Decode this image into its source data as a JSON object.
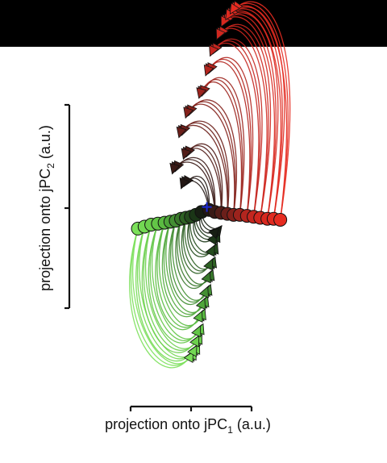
{
  "chart_data": {
    "type": "line",
    "xlabel": "projection onto jPC",
    "xlabel_sub": "1",
    "xlabel_unit": " (a.u.)",
    "ylabel": "projection onto jPC",
    "ylabel_sub": "2",
    "ylabel_unit": " (a.u.)",
    "xlim": [
      -1.75,
      2.2
    ],
    "ylim": [
      -2.0,
      1.55
    ],
    "grid": false,
    "legend": "none",
    "origin_marker": {
      "x": 0,
      "y": 0,
      "color": "#1d2bd6",
      "symbol": "+"
    },
    "color_scale": {
      "green": "#7be05a",
      "dark": "#151a12",
      "red": "#d8281f"
    },
    "trajectories": [
      {
        "start": [
          -1.55,
          -0.22
        ],
        "p1": [
          -2.15,
          -1.2
        ],
        "p2": [
          -0.85,
          -1.95
        ],
        "end": [
          -0.28,
          -1.46
        ],
        "c": "#7be05a"
      },
      {
        "start": [
          -1.4,
          -0.2
        ],
        "p1": [
          -2.0,
          -1.1
        ],
        "p2": [
          -0.75,
          -1.88
        ],
        "end": [
          -0.2,
          -1.4
        ],
        "c": "#73d853"
      },
      {
        "start": [
          -1.25,
          -0.18
        ],
        "p1": [
          -1.85,
          -1.05
        ],
        "p2": [
          -0.7,
          -1.8
        ],
        "end": [
          -0.15,
          -1.3
        ],
        "c": "#6ccf4d"
      },
      {
        "start": [
          -1.1,
          -0.17
        ],
        "p1": [
          -1.7,
          -0.95
        ],
        "p2": [
          -0.6,
          -1.7
        ],
        "end": [
          -0.12,
          -1.2
        ],
        "c": "#63c647"
      },
      {
        "start": [
          -0.95,
          -0.16
        ],
        "p1": [
          -1.5,
          -0.9
        ],
        "p2": [
          -0.55,
          -1.55
        ],
        "end": [
          -0.08,
          -1.05
        ],
        "c": "#5abb41"
      },
      {
        "start": [
          -0.82,
          -0.15
        ],
        "p1": [
          -1.3,
          -0.8
        ],
        "p2": [
          -0.45,
          -1.4
        ],
        "end": [
          -0.02,
          -0.92
        ],
        "c": "#4ea63a"
      },
      {
        "start": [
          -0.7,
          -0.14
        ],
        "p1": [
          -1.1,
          -0.72
        ],
        "p2": [
          -0.35,
          -1.25
        ],
        "end": [
          0.05,
          -0.8
        ],
        "c": "#438f33"
      },
      {
        "start": [
          -0.58,
          -0.12
        ],
        "p1": [
          -0.9,
          -0.6
        ],
        "p2": [
          -0.25,
          -1.05
        ],
        "end": [
          0.1,
          -0.65
        ],
        "c": "#38782b"
      },
      {
        "start": [
          -0.47,
          -0.11
        ],
        "p1": [
          -0.72,
          -0.5
        ],
        "p2": [
          -0.15,
          -0.85
        ],
        "end": [
          0.15,
          -0.52
        ],
        "c": "#2e6124"
      },
      {
        "start": [
          -0.36,
          -0.1
        ],
        "p1": [
          -0.55,
          -0.4
        ],
        "p2": [
          -0.05,
          -0.62
        ],
        "end": [
          0.2,
          -0.38
        ],
        "c": "#244b1d"
      },
      {
        "start": [
          -0.25,
          -0.08
        ],
        "p1": [
          -0.38,
          -0.28
        ],
        "p2": [
          0.05,
          -0.42
        ],
        "end": [
          0.25,
          -0.26
        ],
        "c": "#1b3617"
      },
      {
        "start": [
          -0.12,
          -0.05
        ],
        "p1": [
          -0.2,
          -0.2
        ],
        "p2": [
          0.1,
          -0.3
        ],
        "end": [
          0.3,
          -0.2
        ],
        "c": "#171e13"
      },
      {
        "start": [
          0.05,
          -0.03
        ],
        "p1": [
          0.0,
          0.35
        ],
        "p2": [
          -0.4,
          0.35
        ],
        "end": [
          -0.55,
          0.2
        ],
        "c": "#231714"
      },
      {
        "start": [
          0.18,
          -0.05
        ],
        "p1": [
          0.15,
          0.6
        ],
        "p2": [
          -0.6,
          0.55
        ],
        "end": [
          -0.75,
          0.35
        ],
        "c": "#3a1a16"
      },
      {
        "start": [
          0.32,
          -0.06
        ],
        "p1": [
          0.4,
          0.65
        ],
        "p2": [
          -0.3,
          0.75
        ],
        "end": [
          -0.5,
          0.5
        ],
        "c": "#521d18"
      },
      {
        "start": [
          0.46,
          -0.07
        ],
        "p1": [
          0.6,
          0.9
        ],
        "p2": [
          -0.4,
          1.0
        ],
        "end": [
          -0.6,
          0.72
        ],
        "c": "#6b1f1a"
      },
      {
        "start": [
          0.6,
          -0.08
        ],
        "p1": [
          0.85,
          1.1
        ],
        "p2": [
          -0.2,
          1.25
        ],
        "end": [
          -0.45,
          0.92
        ],
        "c": "#84211b"
      },
      {
        "start": [
          0.74,
          -0.08
        ],
        "p1": [
          1.05,
          1.35
        ],
        "p2": [
          0.1,
          1.5
        ],
        "end": [
          -0.15,
          1.12
        ],
        "c": "#9c231d"
      },
      {
        "start": [
          0.9,
          -0.09
        ],
        "p1": [
          1.3,
          1.55
        ],
        "p2": [
          0.3,
          1.7
        ],
        "end": [
          0.0,
          1.35
        ],
        "c": "#b3251e"
      },
      {
        "start": [
          1.05,
          -0.1
        ],
        "p1": [
          1.6,
          1.7
        ],
        "p2": [
          0.45,
          1.9
        ],
        "end": [
          0.1,
          1.55
        ],
        "c": "#c4261f"
      },
      {
        "start": [
          1.2,
          -0.11
        ],
        "p1": [
          1.85,
          1.8
        ],
        "p2": [
          0.6,
          2.05
        ],
        "end": [
          0.25,
          1.72
        ],
        "c": "#cf271f"
      },
      {
        "start": [
          1.36,
          -0.12
        ],
        "p1": [
          2.05,
          1.95
        ],
        "p2": [
          0.7,
          2.15
        ],
        "end": [
          0.35,
          1.85
        ],
        "c": "#d8281f"
      },
      {
        "start": [
          1.5,
          -0.12
        ],
        "p1": [
          2.2,
          2.0
        ],
        "p2": [
          0.85,
          2.2
        ],
        "end": [
          0.45,
          1.92
        ],
        "c": "#e02a20"
      },
      {
        "start": [
          1.65,
          -0.13
        ],
        "p1": [
          2.3,
          2.05
        ],
        "p2": [
          0.95,
          2.25
        ],
        "end": [
          0.55,
          1.98
        ],
        "c": "#e62c21"
      }
    ]
  }
}
